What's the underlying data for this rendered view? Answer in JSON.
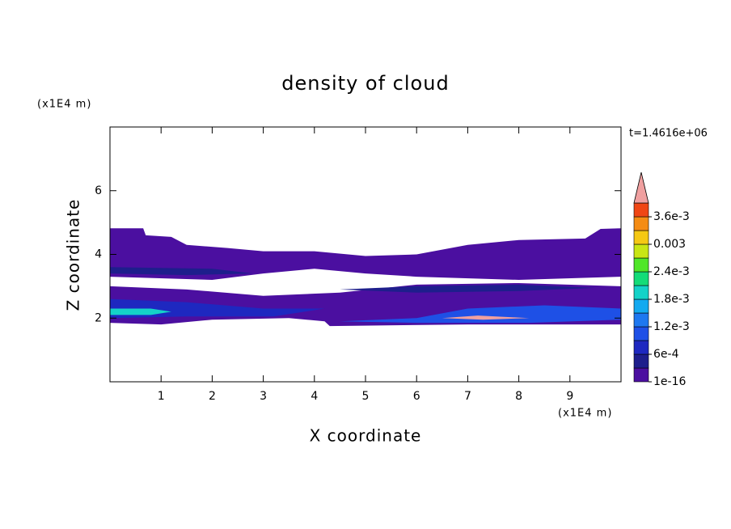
{
  "chart_data": {
    "type": "contour",
    "title": "density of cloud",
    "x_label": "X coordinate",
    "y_label": "Z coordinate",
    "x_unit": "(x1E4 m)",
    "y_unit": "(x1E4 m)",
    "time_label": "t=1.4616e+06",
    "xlim": [
      0,
      10
    ],
    "ylim": [
      0,
      8
    ],
    "xticks": [
      1,
      2,
      3,
      4,
      5,
      6,
      7,
      8,
      9
    ],
    "yticks": [
      2,
      4,
      6
    ],
    "colorbar": {
      "lim": [
        0,
        0.0039
      ],
      "colors": [
        "#4b0fa0",
        "#1e1e8c",
        "#1e28c0",
        "#1e50e6",
        "#1e78f0",
        "#14aaf0",
        "#14d2c8",
        "#14dc78",
        "#50e628",
        "#c8e614",
        "#f5c814",
        "#f58c14",
        "#f04614"
      ],
      "extend_color": "#f0a0a0",
      "ticks": [
        {
          "value": 1e-16,
          "label": "1e-16"
        },
        {
          "value": 0.0006,
          "label": "6e-4"
        },
        {
          "value": 0.0012,
          "label": "1.2e-3"
        },
        {
          "value": 0.0018,
          "label": "1.8e-3"
        },
        {
          "value": 0.0024,
          "label": "2.4e-3"
        },
        0.003,
        {
          "value": 0.0036,
          "label": "3.6e-3"
        }
      ]
    },
    "regions": [
      {
        "value": 1e-16,
        "points": [
          [
            0,
            4.82
          ],
          [
            0.65,
            4.82
          ],
          [
            0.7,
            4.6
          ],
          [
            1.2,
            4.55
          ],
          [
            1.5,
            4.3
          ],
          [
            2.3,
            4.2
          ],
          [
            3,
            4.1
          ],
          [
            4,
            4.1
          ],
          [
            5,
            3.95
          ],
          [
            6,
            4.0
          ],
          [
            7,
            4.3
          ],
          [
            8,
            4.45
          ],
          [
            9.3,
            4.5
          ],
          [
            9.6,
            4.8
          ],
          [
            10,
            4.82
          ],
          [
            10,
            3.3
          ],
          [
            8,
            3.2
          ],
          [
            6,
            3.3
          ],
          [
            5,
            3.4
          ],
          [
            4,
            3.55
          ],
          [
            3,
            3.4
          ],
          [
            2,
            3.2
          ],
          [
            0,
            3.3
          ]
        ]
      },
      {
        "value": 1e-16,
        "points": [
          [
            0,
            3.0
          ],
          [
            1.5,
            2.9
          ],
          [
            3,
            2.7
          ],
          [
            4.5,
            2.8
          ],
          [
            6,
            3.05
          ],
          [
            8,
            3.1
          ],
          [
            10,
            3.0
          ],
          [
            10,
            1.8
          ],
          [
            7,
            1.8
          ],
          [
            4.3,
            1.75
          ],
          [
            4.2,
            1.9
          ],
          [
            3.5,
            2.0
          ],
          [
            2,
            1.95
          ],
          [
            1,
            1.8
          ],
          [
            0,
            1.85
          ]
        ]
      },
      {
        "value": 0.0003,
        "points": [
          [
            0,
            3.6
          ],
          [
            2,
            3.55
          ],
          [
            2.8,
            3.4
          ],
          [
            1.5,
            3.35
          ],
          [
            0,
            3.4
          ]
        ]
      },
      {
        "value": 0.0003,
        "points": [
          [
            4.5,
            2.9
          ],
          [
            6,
            3.0
          ],
          [
            8,
            3.05
          ],
          [
            9.5,
            2.95
          ],
          [
            8,
            2.85
          ],
          [
            6,
            2.8
          ]
        ]
      },
      {
        "value": 0.0006,
        "points": [
          [
            0,
            2.6
          ],
          [
            1.5,
            2.5
          ],
          [
            3,
            2.3
          ],
          [
            4.2,
            2.3
          ],
          [
            3.2,
            2.05
          ],
          [
            1.5,
            2.05
          ],
          [
            0,
            2.0
          ]
        ]
      },
      {
        "value": 0.0009,
        "points": [
          [
            4.5,
            1.9
          ],
          [
            6,
            2.0
          ],
          [
            7,
            2.3
          ],
          [
            8.5,
            2.4
          ],
          [
            10,
            2.3
          ],
          [
            10,
            1.95
          ],
          [
            8.2,
            1.85
          ],
          [
            6,
            1.85
          ]
        ]
      },
      {
        "value": 0.0018,
        "points": [
          [
            0,
            2.3
          ],
          [
            0.8,
            2.3
          ],
          [
            1.2,
            2.2
          ],
          [
            0.8,
            2.1
          ],
          [
            0,
            2.1
          ]
        ]
      },
      {
        "value": 0.004,
        "points": [
          [
            6.5,
            2.0
          ],
          [
            7.2,
            2.08
          ],
          [
            8.2,
            2.0
          ],
          [
            7.3,
            1.95
          ]
        ]
      }
    ]
  }
}
